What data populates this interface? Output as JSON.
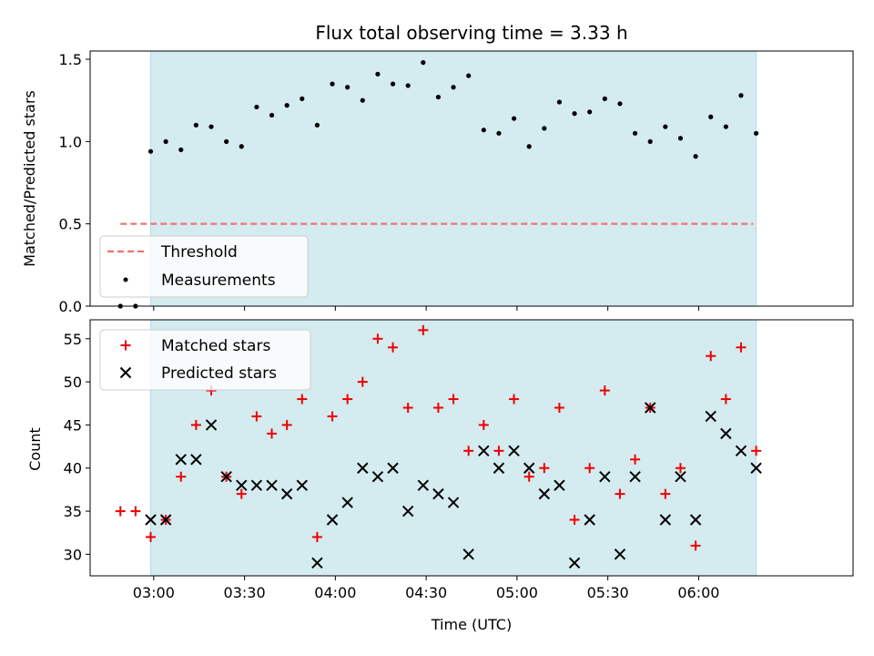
{
  "colors": {
    "shade": "#d4ebf0",
    "shade_edge": "#b2dde6",
    "threshold": "#f07070",
    "matched": "#ee0000",
    "predicted": "#000000",
    "measure": "#000000"
  },
  "chart_data": [
    {
      "type": "scatter",
      "title": "Flux total observing time = 3.33 h",
      "ylabel": "Matched/Predicted stars",
      "xlim": [
        "02:39",
        "06:51"
      ],
      "ylim": [
        0,
        1.55
      ],
      "yticks": [
        0.0,
        0.5,
        1.0,
        1.5
      ],
      "ytick_labels": [
        "0.0",
        "0.5",
        "1.0",
        "1.5"
      ],
      "shaded_span": [
        "02:59",
        "06:19"
      ],
      "threshold": {
        "y": 0.5,
        "x_start": "02:49",
        "x_end": "06:18"
      },
      "legend": {
        "position": "lower-left",
        "entries": [
          {
            "label": "Threshold",
            "key": "threshold"
          },
          {
            "label": "Measurements",
            "key": "measurements"
          }
        ]
      },
      "series": [
        {
          "name": "Measurements",
          "x": [
            "02:49",
            "02:54",
            "02:59",
            "03:04",
            "03:09",
            "03:14",
            "03:19",
            "03:24",
            "03:29",
            "03:34",
            "03:39",
            "03:44",
            "03:49",
            "03:54",
            "03:59",
            "04:04",
            "04:09",
            "04:14",
            "04:19",
            "04:24",
            "04:29",
            "04:34",
            "04:39",
            "04:44",
            "04:49",
            "04:54",
            "04:59",
            "05:04",
            "05:09",
            "05:14",
            "05:19",
            "05:24",
            "05:29",
            "05:34",
            "05:39",
            "05:44",
            "05:49",
            "05:54",
            "05:59",
            "06:04",
            "06:09",
            "06:14",
            "06:19"
          ],
          "y": [
            0.0,
            0.0,
            0.94,
            1.0,
            0.95,
            1.1,
            1.09,
            1.0,
            0.97,
            1.21,
            1.16,
            1.22,
            1.26,
            1.1,
            1.35,
            1.33,
            1.25,
            1.41,
            1.35,
            1.34,
            1.48,
            1.27,
            1.33,
            1.4,
            1.07,
            1.05,
            1.14,
            0.97,
            1.08,
            1.24,
            1.17,
            1.18,
            1.26,
            1.23,
            1.05,
            1.0,
            1.09,
            1.02,
            0.91,
            1.15,
            1.09,
            1.28,
            1.05
          ]
        }
      ]
    },
    {
      "type": "scatter",
      "xlabel": "Time (UTC)",
      "ylabel": "Count",
      "xlim": [
        "02:39",
        "06:51"
      ],
      "ylim": [
        27.5,
        57.2
      ],
      "yticks": [
        30,
        35,
        40,
        45,
        50,
        55
      ],
      "ytick_labels": [
        "30",
        "35",
        "40",
        "45",
        "50",
        "55"
      ],
      "xticks": [
        "03:00",
        "03:30",
        "04:00",
        "04:30",
        "05:00",
        "05:30",
        "06:00"
      ],
      "xtick_labels": [
        "03:00",
        "03:30",
        "04:00",
        "04:30",
        "05:00",
        "05:30",
        "06:00"
      ],
      "shaded_span": [
        "02:59",
        "06:19"
      ],
      "legend": {
        "position": "upper-left",
        "entries": [
          {
            "label": "Matched stars",
            "key": "matched"
          },
          {
            "label": "Predicted stars",
            "key": "predicted"
          }
        ]
      },
      "series": [
        {
          "name": "Matched stars",
          "x": [
            "02:49",
            "02:54",
            "02:59",
            "03:04",
            "03:09",
            "03:14",
            "03:19",
            "03:24",
            "03:29",
            "03:34",
            "03:39",
            "03:44",
            "03:49",
            "03:54",
            "03:59",
            "04:04",
            "04:09",
            "04:14",
            "04:19",
            "04:24",
            "04:29",
            "04:34",
            "04:39",
            "04:44",
            "04:49",
            "04:54",
            "04:59",
            "05:04",
            "05:09",
            "05:14",
            "05:19",
            "05:24",
            "05:29",
            "05:34",
            "05:39",
            "05:44",
            "05:49",
            "05:54",
            "05:59",
            "06:04",
            "06:09",
            "06:14",
            "06:19"
          ],
          "y": [
            35,
            35,
            32,
            34,
            39,
            45,
            49,
            39,
            37,
            46,
            44,
            45,
            48,
            32,
            46,
            48,
            50,
            55,
            54,
            47,
            56,
            47,
            48,
            42,
            45,
            42,
            48,
            39,
            40,
            47,
            34,
            40,
            49,
            37,
            41,
            47,
            37,
            40,
            31,
            53,
            48,
            54,
            42
          ]
        },
        {
          "name": "Predicted stars",
          "x": [
            "02:59",
            "03:04",
            "03:09",
            "03:14",
            "03:19",
            "03:24",
            "03:29",
            "03:34",
            "03:39",
            "03:44",
            "03:49",
            "03:54",
            "03:59",
            "04:04",
            "04:09",
            "04:14",
            "04:19",
            "04:24",
            "04:29",
            "04:34",
            "04:39",
            "04:44",
            "04:49",
            "04:54",
            "04:59",
            "05:04",
            "05:09",
            "05:14",
            "05:19",
            "05:24",
            "05:29",
            "05:34",
            "05:39",
            "05:44",
            "05:49",
            "05:54",
            "05:59",
            "06:04",
            "06:09",
            "06:14",
            "06:19"
          ],
          "y": [
            34,
            34,
            41,
            41,
            45,
            39,
            38,
            38,
            38,
            37,
            38,
            29,
            34,
            36,
            40,
            39,
            40,
            35,
            38,
            37,
            36,
            30,
            42,
            40,
            42,
            40,
            37,
            38,
            29,
            34,
            39,
            30,
            39,
            47,
            34,
            39,
            34,
            46,
            44,
            42,
            40
          ]
        }
      ]
    }
  ]
}
